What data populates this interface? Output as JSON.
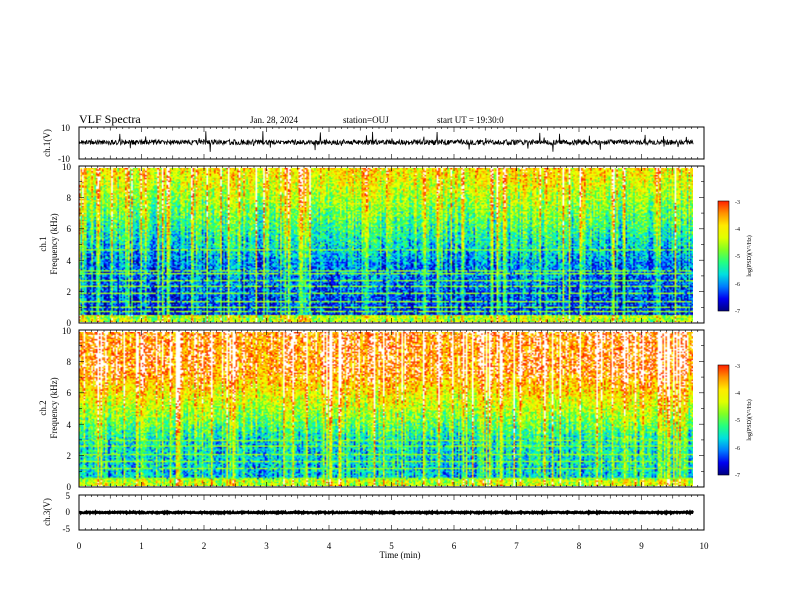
{
  "header": {
    "title": "VLF Spectra",
    "date": "Jan. 28, 2024",
    "station": "station=OUJ",
    "start": "start UT = 19:30:0"
  },
  "chart_data": {
    "type": "heatmap",
    "xlabel": "Time (min)",
    "xlim": [
      0,
      10
    ],
    "xticks": [
      "0",
      "1",
      "2",
      "3",
      "4",
      "5",
      "6",
      "7",
      "8",
      "9",
      "10"
    ],
    "data_end_min": 9.83,
    "panels": [
      {
        "id": "ch1-waveform",
        "type": "line",
        "ylabel": "ch.1(V)",
        "ylim": [
          -10,
          10
        ],
        "yticks": [
          "10",
          "-10"
        ],
        "mean": 0.5
      },
      {
        "id": "ch1-spectrogram",
        "type": "heatmap",
        "ylabel_top": "ch.1",
        "ylabel": "Frequency (kHz)",
        "ylim": [
          0,
          10
        ],
        "yticks": [
          "0",
          "2",
          "4",
          "6",
          "8",
          "10"
        ],
        "colorbar": {
          "label": "log(PSD)(V²/Hz)",
          "range": [
            -7,
            -3
          ],
          "ticks": [
            "-3",
            "-4",
            "-5",
            "-6",
            "-7"
          ]
        }
      },
      {
        "id": "ch2-spectrogram",
        "type": "heatmap",
        "ylabel_top": "ch.2",
        "ylabel": "Frequency (kHz)",
        "ylim": [
          0,
          10
        ],
        "yticks": [
          "0",
          "2",
          "4",
          "6",
          "8",
          "10"
        ],
        "colorbar": {
          "label": "log(PSD)(V²/Hz)",
          "range": [
            -7,
            -3
          ],
          "ticks": [
            "-3",
            "-4",
            "-5",
            "-6",
            "-7"
          ]
        }
      },
      {
        "id": "ch3-waveform",
        "type": "line",
        "ylabel": "ch.3(V)",
        "ylim": [
          -5,
          5
        ],
        "yticks": [
          "5",
          "0",
          "-5"
        ],
        "mean": 0
      }
    ],
    "colormap": [
      "#000080",
      "#0000ff",
      "#00a0ff",
      "#00ffd0",
      "#40ff40",
      "#d0ff00",
      "#ffff00",
      "#ffa000",
      "#ff2000",
      "#ffffff"
    ]
  }
}
